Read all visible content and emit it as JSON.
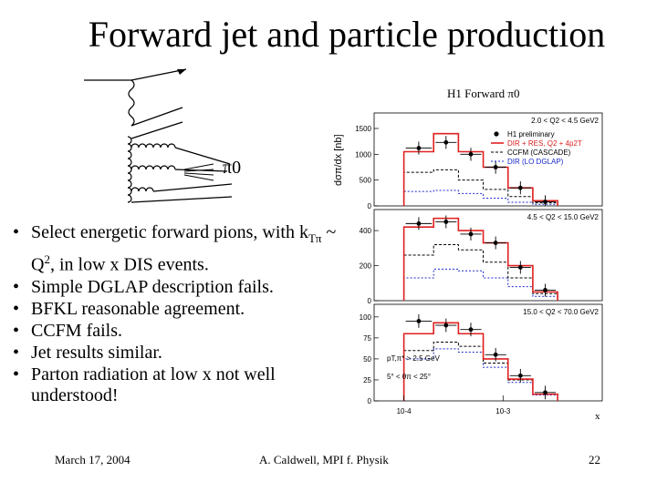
{
  "slide": {
    "title": "Forward jet and particle production",
    "diagram_label": "π0"
  },
  "bullets": [
    {
      "pre": "Select energetic forward pions, with k",
      "sub": "Tπ",
      "mid": " ~ Q",
      "sup": "2",
      "post": ", in low x DIS events."
    },
    {
      "text": "Simple DGLAP description fails."
    },
    {
      "text": "BFKL reasonable agreement."
    },
    {
      "text": "CCFM fails."
    },
    {
      "text": "Jet results similar."
    },
    {
      "text": "Parton radiation at low x not well understood!"
    }
  ],
  "footer": {
    "date": "March 17, 2004",
    "author": "A. Caldwell, MPI f. Physik",
    "page": "22"
  },
  "chart_data": {
    "type": "step-histogram",
    "title": "H1 Forward π0",
    "ylabel": "dσπ/dx [nb]",
    "xlabel": "x",
    "xscale": "log",
    "x_tick_labels": [
      "10-4",
      "10-3"
    ],
    "legend": {
      "entries": [
        "H1 preliminary",
        "DIR + RES, Q2 + 4p2T",
        "CCFM (CASCADE)",
        "DIR (LO DGLAP)"
      ],
      "placement": "top-right of first panel"
    },
    "bin_edges_log10x": [
      -4.0,
      -3.7,
      -3.45,
      -3.2,
      -2.95,
      -2.7,
      -2.45
    ],
    "colors": {
      "data": "#000000",
      "dir_res": "#e02020",
      "ccfm": "#000000",
      "dglap": "#1a2acc"
    },
    "cut_labels": [
      "pT,π* > 2.5 GeV",
      "5° < θπ < 25°"
    ],
    "panels": [
      {
        "label": "2.0 < Q2 < 4.5 GeV2",
        "ylim": [
          0,
          1800
        ],
        "yticks": [
          0,
          500,
          1000,
          1500
        ],
        "data": [
          1120,
          1230,
          1000,
          750,
          350,
          80
        ],
        "dir_res": [
          1050,
          1400,
          1050,
          750,
          350,
          100
        ],
        "ccfm": [
          650,
          700,
          500,
          320,
          180,
          60
        ],
        "dglap": [
          280,
          300,
          240,
          150,
          70,
          30
        ]
      },
      {
        "label": "4.5 < Q2 < 15.0 GeV2",
        "ylim": [
          0,
          520
        ],
        "yticks": [
          0,
          200,
          400
        ],
        "data": [
          440,
          450,
          380,
          330,
          190,
          60
        ],
        "dir_res": [
          420,
          470,
          400,
          330,
          200,
          50
        ],
        "ccfm": [
          260,
          320,
          290,
          220,
          130,
          40
        ],
        "dglap": [
          130,
          180,
          170,
          130,
          80,
          25
        ]
      },
      {
        "label": "15.0 < Q2 < 70.0 GeV2",
        "ylim": [
          0,
          115
        ],
        "yticks": [
          0,
          25,
          50,
          75,
          100
        ],
        "data": [
          95,
          90,
          85,
          55,
          30,
          10
        ],
        "dir_res": [
          80,
          93,
          80,
          50,
          26,
          8
        ],
        "ccfm": [
          60,
          70,
          65,
          45,
          25,
          8
        ],
        "dglap": [
          50,
          62,
          58,
          40,
          22,
          7
        ]
      }
    ]
  }
}
